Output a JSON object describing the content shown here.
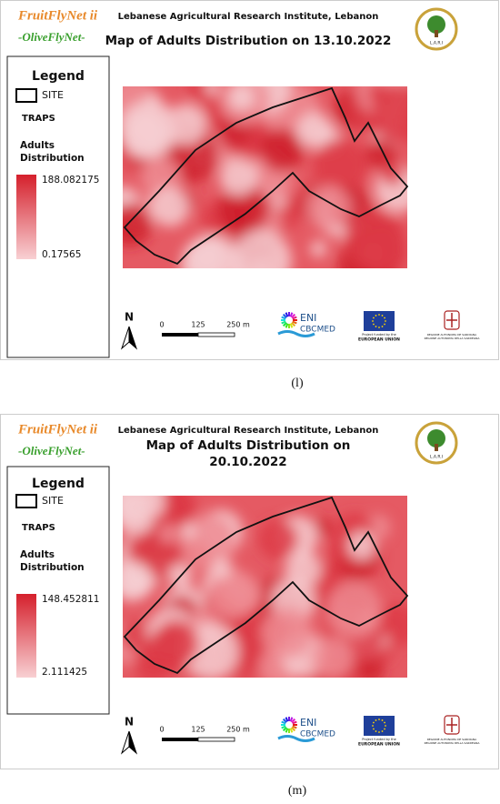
{
  "panels": [
    {
      "brand": "FruitFlyNet ii",
      "subbrand": "-OliveFlyNet-",
      "institute": "Lebanese Agricultural Research Institute, Lebanon",
      "title_lines": [
        "Map of Adults Distribution on 13.10.2022"
      ],
      "legend": {
        "heading": "Legend",
        "site": "SITE",
        "traps": "TRAPS",
        "layer_lines": [
          "Adults",
          "Distribution"
        ],
        "max": "188.082175",
        "min": "0.17565"
      },
      "north": "N",
      "scale": [
        "0",
        "125",
        "250 m"
      ],
      "logos": {
        "lari": "L.A.R.I",
        "eni": "ENI",
        "cbcmed": "CBCMED",
        "eu_small": "Project funded by the",
        "eu": "EUROPEAN UNION",
        "region_1": "REGIONE AUTONOMA DE SARDIGNA",
        "region_2": "REGIONE AUTONOMA DELLA SARDEGNA"
      },
      "caption": "(l)"
    },
    {
      "brand": "FruitFlyNet ii",
      "subbrand": "-OliveFlyNet-",
      "institute": "Lebanese Agricultural Research Institute, Lebanon",
      "title_lines": [
        "Map of Adults Distribution on",
        "20.10.2022"
      ],
      "legend": {
        "heading": "Legend",
        "site": "SITE",
        "traps": "TRAPS",
        "layer_lines": [
          "Adults",
          "Distribution"
        ],
        "max": "148.452811",
        "min": "2.111425"
      },
      "north": "N",
      "scale": [
        "0",
        "125",
        "250 m"
      ],
      "logos": {
        "lari": "L.A.R.I",
        "eni": "ENI",
        "cbcmed": "CBCMED",
        "eu_small": "Project funded by the",
        "eu": "EUROPEAN UNION",
        "region_1": "REGIONE AUTONOMA DE SARDIGNA",
        "region_2": "REGIONE AUTONOMA DELLA SARDEGNA"
      },
      "caption": "(m)"
    }
  ]
}
